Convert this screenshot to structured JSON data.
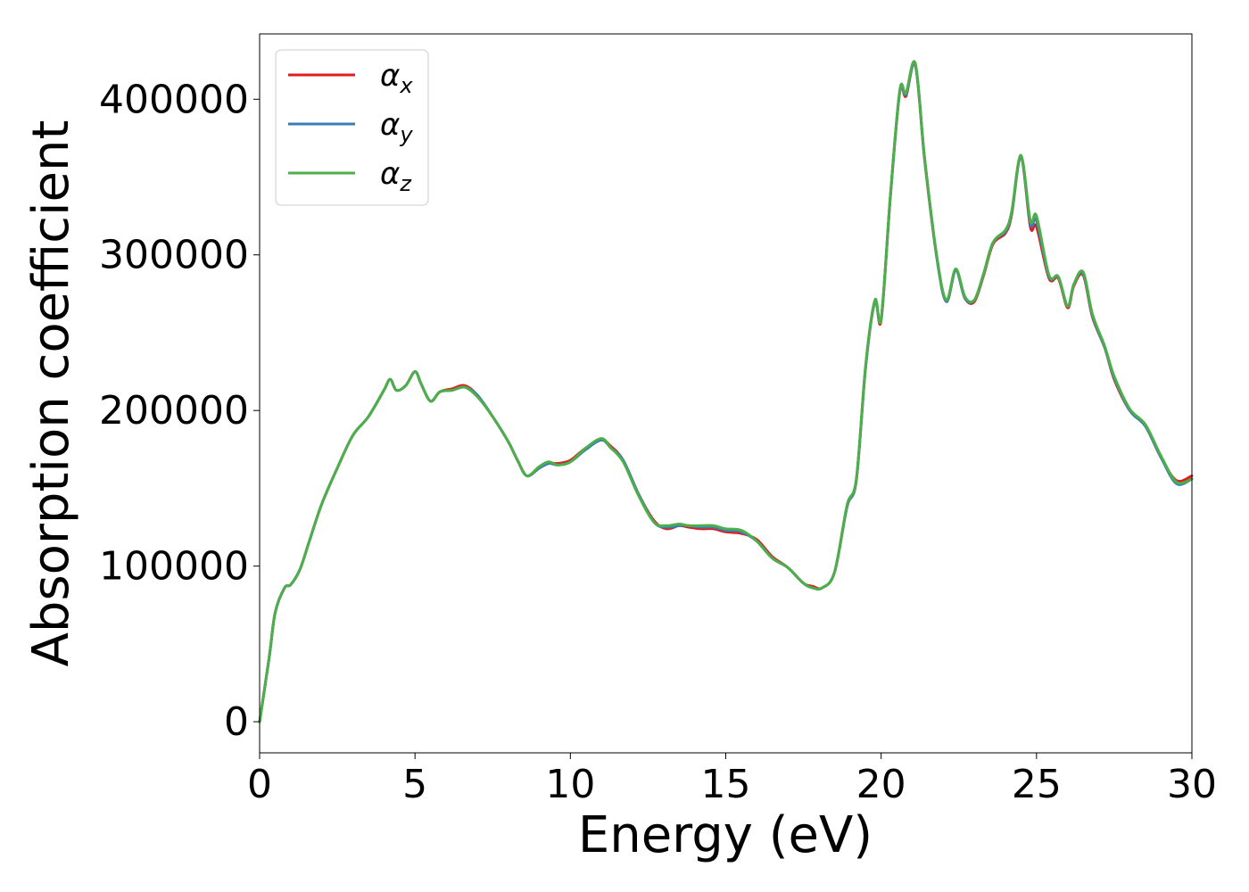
{
  "chart_data": {
    "type": "line",
    "title": "",
    "xlabel": "Energy (eV)",
    "ylabel": "Absorption coefficient",
    "xlim": [
      0,
      30
    ],
    "ylim": [
      -20000,
      442000
    ],
    "xticks": [
      0,
      5,
      10,
      15,
      20,
      25,
      30
    ],
    "yticks": [
      0,
      100000,
      200000,
      300000,
      400000
    ],
    "grid": false,
    "legend_position": "top-left",
    "series": [
      {
        "name": "α",
        "subscript": "x",
        "color": "#e41a1c",
        "x": [
          0,
          0.3,
          0.5,
          0.8,
          1.0,
          1.3,
          1.6,
          2.0,
          2.5,
          3.0,
          3.5,
          4.0,
          4.2,
          4.4,
          4.7,
          5.0,
          5.2,
          5.5,
          5.8,
          6.2,
          6.6,
          7.0,
          7.5,
          8.0,
          8.3,
          8.6,
          9.0,
          9.3,
          9.6,
          10.0,
          10.5,
          11.0,
          11.3,
          11.7,
          12.2,
          12.7,
          13.1,
          13.5,
          13.8,
          14.2,
          14.6,
          15.0,
          15.5,
          16.0,
          16.5,
          17.0,
          17.5,
          17.8,
          18.1,
          18.5,
          18.9,
          19.2,
          19.5,
          19.8,
          20.0,
          20.3,
          20.6,
          20.8,
          21.1,
          21.4,
          21.8,
          22.1,
          22.4,
          22.7,
          23.0,
          23.3,
          23.6,
          24.0,
          24.2,
          24.5,
          24.8,
          25.0,
          25.4,
          25.7,
          26.0,
          26.2,
          26.5,
          26.8,
          27.2,
          27.5,
          28.0,
          28.5,
          29.0,
          29.5,
          30.0
        ],
        "y": [
          0,
          40000,
          70000,
          86000,
          88000,
          98000,
          116000,
          140000,
          163000,
          184000,
          196000,
          213000,
          220000,
          213000,
          216000,
          225000,
          217000,
          206000,
          212000,
          214000,
          216000,
          210000,
          196000,
          180000,
          168000,
          158000,
          163000,
          166000,
          166000,
          168000,
          176000,
          181000,
          177000,
          168000,
          146000,
          129000,
          124000,
          126000,
          125000,
          124000,
          124000,
          122000,
          121000,
          117000,
          106000,
          99000,
          89000,
          87000,
          86000,
          96000,
          138000,
          155000,
          228000,
          270000,
          258000,
          338000,
          405000,
          402000,
          422000,
          361000,
          297000,
          270000,
          290000,
          272000,
          270000,
          287000,
          307000,
          314000,
          326000,
          363000,
          318000,
          318000,
          285000,
          285000,
          266000,
          280000,
          287000,
          260000,
          240000,
          220000,
          200000,
          190000,
          170000,
          155000,
          158000
        ]
      },
      {
        "name": "α",
        "subscript": "y",
        "color": "#377eb8",
        "x": [
          0,
          0.3,
          0.5,
          0.8,
          1.0,
          1.3,
          1.6,
          2.0,
          2.5,
          3.0,
          3.5,
          4.0,
          4.2,
          4.4,
          4.7,
          5.0,
          5.2,
          5.5,
          5.8,
          6.2,
          6.6,
          7.0,
          7.5,
          8.0,
          8.3,
          8.6,
          9.0,
          9.3,
          9.6,
          10.0,
          10.5,
          11.0,
          11.3,
          11.7,
          12.2,
          12.7,
          13.1,
          13.5,
          13.8,
          14.2,
          14.6,
          15.0,
          15.5,
          16.0,
          16.5,
          17.0,
          17.5,
          17.8,
          18.1,
          18.5,
          18.9,
          19.2,
          19.5,
          19.8,
          20.0,
          20.3,
          20.6,
          20.8,
          21.1,
          21.4,
          21.8,
          22.1,
          22.4,
          22.7,
          23.0,
          23.3,
          23.6,
          24.0,
          24.2,
          24.5,
          24.8,
          25.0,
          25.4,
          25.7,
          26.0,
          26.2,
          26.5,
          26.8,
          27.2,
          27.5,
          28.0,
          28.5,
          29.0,
          29.5,
          30.0
        ],
        "y": [
          0,
          40000,
          70000,
          86000,
          88000,
          98000,
          116000,
          140000,
          163000,
          184000,
          196000,
          213000,
          220000,
          213000,
          216000,
          225000,
          217000,
          206000,
          212000,
          213000,
          215000,
          210000,
          196000,
          180000,
          168000,
          158000,
          163000,
          166000,
          165000,
          167000,
          175000,
          181000,
          176000,
          168000,
          146000,
          128000,
          125000,
          126000,
          126000,
          125000,
          125000,
          123000,
          122000,
          116000,
          105000,
          99000,
          89000,
          86000,
          86000,
          96000,
          138000,
          155000,
          228000,
          270000,
          259000,
          338000,
          405000,
          403000,
          422000,
          362000,
          297000,
          270000,
          290000,
          272000,
          271000,
          288000,
          308000,
          315000,
          327000,
          363000,
          320000,
          322000,
          286000,
          286000,
          267000,
          281000,
          288000,
          261000,
          240000,
          221000,
          200000,
          190000,
          170000,
          153000,
          156000
        ]
      },
      {
        "name": "α",
        "subscript": "z",
        "color": "#4daf4a",
        "x": [
          0,
          0.3,
          0.5,
          0.8,
          1.0,
          1.3,
          1.6,
          2.0,
          2.5,
          3.0,
          3.5,
          4.0,
          4.2,
          4.4,
          4.7,
          5.0,
          5.2,
          5.5,
          5.8,
          6.2,
          6.6,
          7.0,
          7.5,
          8.0,
          8.3,
          8.6,
          9.0,
          9.3,
          9.6,
          10.0,
          10.5,
          11.0,
          11.3,
          11.7,
          12.2,
          12.7,
          13.1,
          13.5,
          13.8,
          14.2,
          14.6,
          15.0,
          15.5,
          16.0,
          16.5,
          17.0,
          17.5,
          17.8,
          18.1,
          18.5,
          18.9,
          19.2,
          19.5,
          19.8,
          20.0,
          20.3,
          20.6,
          20.8,
          21.1,
          21.4,
          21.8,
          22.1,
          22.4,
          22.7,
          23.0,
          23.3,
          23.6,
          24.0,
          24.2,
          24.5,
          24.8,
          25.0,
          25.4,
          25.7,
          26.0,
          26.2,
          26.5,
          26.8,
          27.2,
          27.5,
          28.0,
          28.5,
          29.0,
          29.5,
          30.0
        ],
        "y": [
          0,
          40000,
          70000,
          86000,
          88000,
          98000,
          116000,
          140000,
          163000,
          184000,
          196000,
          213000,
          220000,
          213000,
          216000,
          225000,
          217000,
          206000,
          212000,
          213000,
          215000,
          209000,
          196000,
          180000,
          168000,
          158000,
          164000,
          167000,
          165000,
          167000,
          176000,
          182000,
          176000,
          167000,
          145000,
          128000,
          126000,
          127000,
          126000,
          126000,
          126000,
          124000,
          123000,
          116000,
          105000,
          99000,
          89000,
          86000,
          86000,
          96000,
          139000,
          156000,
          229000,
          271000,
          259000,
          339000,
          406000,
          404000,
          423000,
          362000,
          298000,
          271000,
          291000,
          273000,
          271000,
          288000,
          308000,
          316000,
          328000,
          364000,
          322000,
          325000,
          287000,
          286000,
          267000,
          281000,
          289000,
          262000,
          241000,
          222000,
          201000,
          191000,
          171000,
          154000,
          156000
        ]
      }
    ]
  }
}
